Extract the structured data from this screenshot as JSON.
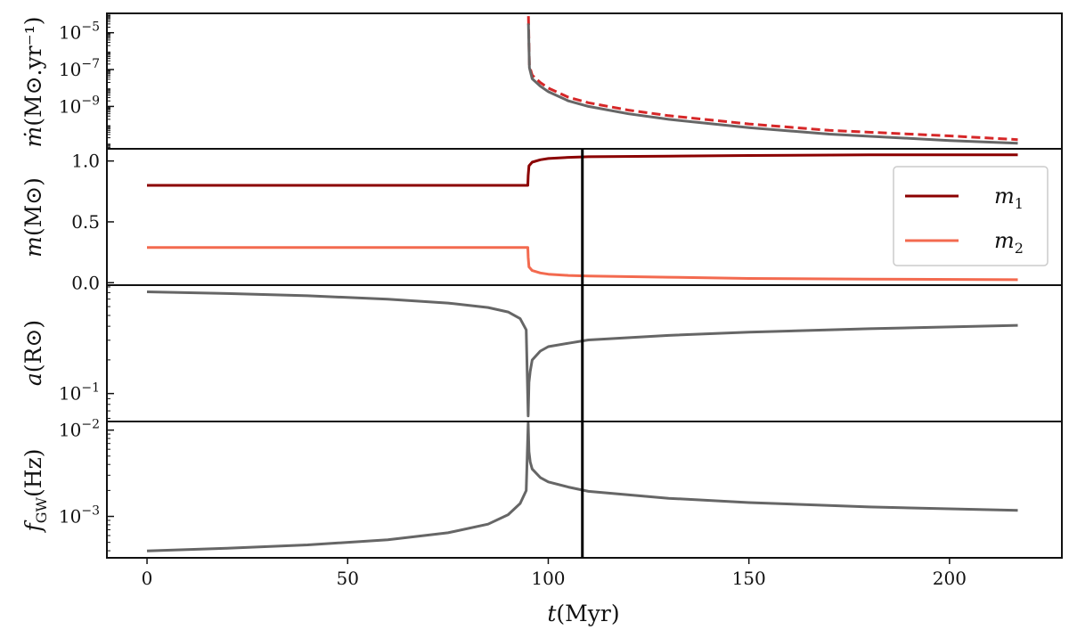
{
  "chart_data": {
    "type": "line",
    "xlabel_main": "t",
    "xlabel_unit": "(Myr)",
    "x_range": [
      -10,
      228
    ],
    "x_ticks": [
      "0",
      "50",
      "100",
      "150",
      "200"
    ],
    "x_tick_values": [
      0,
      50,
      100,
      150,
      200
    ],
    "vertical_line_x": 108.5,
    "event_x": 95,
    "x_end": 217,
    "panels": [
      {
        "id": "mdot",
        "ylabel_main": "ṁ",
        "ylabel_unit": "(M⊙.yr⁻¹)",
        "scale": "log",
        "y_range_log10": [
          -11.3,
          -3.95
        ],
        "yticks": [
          {
            "base": "10",
            "exp": "−5",
            "value_log10": -5
          },
          {
            "base": "10",
            "exp": "−7",
            "value_log10": -7
          },
          {
            "base": "10",
            "exp": "−9",
            "value_log10": -9
          }
        ],
        "series": [
          {
            "style": "dashed",
            "color": "#d62728",
            "x": [
              95.05,
              95.3,
              96,
              98,
              100,
              105,
              110,
              120,
              130,
              150,
              170,
              200,
              217
            ],
            "y_log10": [
              -4.1,
              -6.8,
              -7.3,
              -7.7,
              -8.0,
              -8.5,
              -8.8,
              -9.2,
              -9.5,
              -9.95,
              -10.3,
              -10.6,
              -10.8
            ]
          },
          {
            "style": "solid",
            "color": "#666666",
            "x": [
              95.05,
              95.3,
              96,
              98,
              100,
              105,
              110,
              120,
              130,
              150,
              170,
              200,
              217
            ],
            "y_log10": [
              -4.5,
              -6.9,
              -7.5,
              -7.9,
              -8.2,
              -8.7,
              -9.0,
              -9.4,
              -9.7,
              -10.15,
              -10.5,
              -10.85,
              -11.0
            ]
          }
        ]
      },
      {
        "id": "mass",
        "ylabel_main": "m",
        "ylabel_unit": "(M⊙)",
        "scale": "linear",
        "y_range": [
          -0.02,
          1.1
        ],
        "yticks": [
          {
            "label": "0.0",
            "value": 0.0
          },
          {
            "label": "0.5",
            "value": 0.5
          },
          {
            "label": "1.0",
            "value": 1.0
          }
        ],
        "series": [
          {
            "name": "m₁",
            "label_base": "m",
            "label_sub": "1",
            "color": "#8b0000",
            "x": [
              0,
              94.9,
              95.0,
              95.2,
              96,
              98,
              100,
              105,
              110,
              130,
              150,
              180,
              217
            ],
            "y": [
              0.8,
              0.8,
              0.88,
              0.96,
              0.99,
              1.01,
              1.02,
              1.03,
              1.035,
              1.04,
              1.045,
              1.05,
              1.05
            ]
          },
          {
            "name": "m₂",
            "label_base": "m",
            "label_sub": "2",
            "color": "#f36a4f",
            "x": [
              0,
              94.9,
              95.0,
              95.2,
              96,
              98,
              100,
              105,
              110,
              130,
              150,
              180,
              217
            ],
            "y": [
              0.29,
              0.29,
              0.21,
              0.13,
              0.1,
              0.08,
              0.07,
              0.06,
              0.055,
              0.045,
              0.035,
              0.03,
              0.025
            ]
          }
        ]
      },
      {
        "id": "sep",
        "ylabel_main": "a",
        "ylabel_unit": "(R⊙)",
        "scale": "log",
        "y_range_log10": [
          -1.25,
          -0.03
        ],
        "yticks": [
          {
            "base": "10",
            "exp": "−1",
            "value_log10": -1
          }
        ],
        "series": [
          {
            "color": "#666666",
            "x": [
              0,
              20,
              40,
              60,
              75,
              85,
              90,
              93,
              94.5,
              95,
              95.2,
              95.5,
              96,
              98,
              100,
              105,
              110,
              130,
              150,
              180,
              217
            ],
            "y_log10": [
              -0.09,
              -0.105,
              -0.125,
              -0.155,
              -0.19,
              -0.23,
              -0.27,
              -0.33,
              -0.43,
              -1.2,
              -0.9,
              -0.8,
              -0.7,
              -0.62,
              -0.58,
              -0.55,
              -0.52,
              -0.48,
              -0.45,
              -0.42,
              -0.39
            ]
          }
        ]
      },
      {
        "id": "fgw",
        "ylabel_main": "f",
        "ylabel_sub": "GW",
        "ylabel_unit": "(Hz)",
        "scale": "log",
        "y_range_log10": [
          -3.48,
          -1.9
        ],
        "yticks": [
          {
            "base": "10",
            "exp": "−2",
            "value_log10": -2
          },
          {
            "base": "10",
            "exp": "−3",
            "value_log10": -3
          }
        ],
        "series": [
          {
            "color": "#666666",
            "x": [
              0,
              20,
              40,
              60,
              75,
              85,
              90,
              93,
              94.5,
              95,
              95.2,
              95.5,
              96,
              98,
              100,
              105,
              110,
              130,
              150,
              180,
              217
            ],
            "y_log10": [
              -3.4,
              -3.37,
              -3.33,
              -3.27,
              -3.19,
              -3.09,
              -2.98,
              -2.85,
              -2.7,
              -1.92,
              -2.25,
              -2.37,
              -2.45,
              -2.55,
              -2.6,
              -2.66,
              -2.71,
              -2.79,
              -2.84,
              -2.89,
              -2.93
            ]
          }
        ]
      }
    ]
  }
}
